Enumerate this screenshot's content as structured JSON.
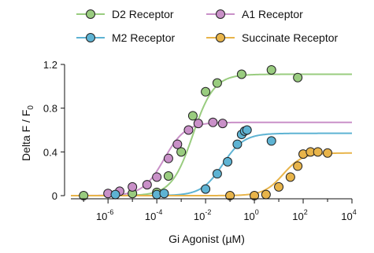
{
  "chart_data": {
    "type": "scatter",
    "xscale": "log",
    "xlim": [
      3e-08,
      10000
    ],
    "ylim": [
      0,
      1.2
    ],
    "xlabel": "Gi Agonist (µM)",
    "ylabel": {
      "main": "Delta F / F",
      "sub": "0"
    },
    "legend_position": "top",
    "x_ticks": [
      {
        "base": "10",
        "exp": "-6",
        "value": 1e-06
      },
      {
        "base": "10",
        "exp": "-4",
        "value": 0.0001
      },
      {
        "base": "10",
        "exp": "-2",
        "value": 0.01
      },
      {
        "base": "10",
        "exp": "0",
        "value": 1
      },
      {
        "base": "10",
        "exp": "2",
        "value": 100
      },
      {
        "base": "10",
        "exp": "4",
        "value": 10000
      }
    ],
    "y_ticks": [
      {
        "label": "0",
        "value": 0
      },
      {
        "label": "0.4",
        "value": 0.4
      },
      {
        "label": "0.8",
        "value": 0.8
      },
      {
        "label": "1.2",
        "value": 1.2
      }
    ],
    "series": [
      {
        "name": "D2 Receptor",
        "color": "#99cc7f",
        "fit": {
          "top": 1.11,
          "ec50": 0.003,
          "hill": 1.0
        },
        "points": [
          {
            "x": 1e-07,
            "y": 0.0
          },
          {
            "x": 1e-05,
            "y": 0.02
          },
          {
            "x": 0.0001,
            "y": 0.03
          },
          {
            "x": 0.0003,
            "y": 0.18
          },
          {
            "x": 0.001,
            "y": 0.4
          },
          {
            "x": 0.003,
            "y": 0.73
          },
          {
            "x": 0.01,
            "y": 0.95
          },
          {
            "x": 0.03,
            "y": 1.03
          },
          {
            "x": 0.3,
            "y": 1.11
          },
          {
            "x": 5,
            "y": 1.15
          },
          {
            "x": 60,
            "y": 1.08
          }
        ]
      },
      {
        "name": "A1 Receptor",
        "color": "#c990c8",
        "fit": {
          "top": 0.67,
          "ec50": 0.0002,
          "hill": 1.0
        },
        "points": [
          {
            "x": 1e-06,
            "y": 0.02
          },
          {
            "x": 3e-06,
            "y": 0.04
          },
          {
            "x": 1e-05,
            "y": 0.08
          },
          {
            "x": 4e-05,
            "y": 0.1
          },
          {
            "x": 0.0001,
            "y": 0.17
          },
          {
            "x": 0.0003,
            "y": 0.34
          },
          {
            "x": 0.0007,
            "y": 0.47
          },
          {
            "x": 0.002,
            "y": 0.6
          },
          {
            "x": 0.005,
            "y": 0.66
          },
          {
            "x": 0.02,
            "y": 0.67
          },
          {
            "x": 0.05,
            "y": 0.66
          }
        ]
      },
      {
        "name": "M2 Receptor",
        "color": "#5eb3d3",
        "fit": {
          "top": 0.57,
          "ec50": 0.05,
          "hill": 1.0
        },
        "points": [
          {
            "x": 2e-06,
            "y": 0.01
          },
          {
            "x": 0.0001,
            "y": 0.01
          },
          {
            "x": 0.0002,
            "y": 0.02
          },
          {
            "x": 0.01,
            "y": 0.06
          },
          {
            "x": 0.03,
            "y": 0.2
          },
          {
            "x": 0.08,
            "y": 0.31
          },
          {
            "x": 0.2,
            "y": 0.47
          },
          {
            "x": 0.3,
            "y": 0.56
          },
          {
            "x": 0.4,
            "y": 0.59
          },
          {
            "x": 0.5,
            "y": 0.6
          },
          {
            "x": 5,
            "y": 0.5
          }
        ]
      },
      {
        "name": "Succinate Receptor",
        "color": "#e8b44a",
        "fit": {
          "top": 0.39,
          "ec50": 15,
          "hill": 1.1
        },
        "points": [
          {
            "x": 0.1,
            "y": 0.0
          },
          {
            "x": 1,
            "y": 0.0
          },
          {
            "x": 3,
            "y": 0.01
          },
          {
            "x": 10,
            "y": 0.08
          },
          {
            "x": 30,
            "y": 0.17
          },
          {
            "x": 60,
            "y": 0.27
          },
          {
            "x": 100,
            "y": 0.38
          },
          {
            "x": 200,
            "y": 0.4
          },
          {
            "x": 400,
            "y": 0.4
          },
          {
            "x": 1000,
            "y": 0.39
          }
        ]
      }
    ]
  }
}
